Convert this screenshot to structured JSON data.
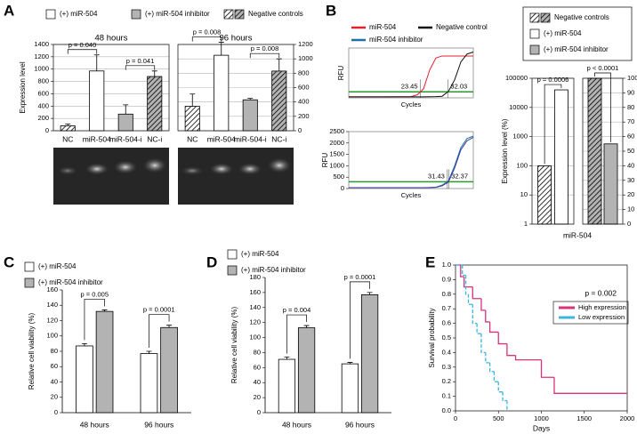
{
  "chart_data": [
    {
      "panel": "A",
      "type": "bar",
      "title": "48 hours",
      "ylabel": "Expression level",
      "legend": [
        {
          "name": "(+) miR-504",
          "fill": "white"
        },
        {
          "name": "(+) miR-504 inhibitor",
          "fill": "gray"
        },
        {
          "name": "Negative controls",
          "fill": [
            "hatch",
            "hatch-gray"
          ]
        }
      ],
      "categories": [
        "NC",
        "miR-504",
        "miR-504-i",
        "NC-i"
      ],
      "values": [
        80,
        970,
        270,
        880
      ],
      "errors": [
        30,
        260,
        150,
        90
      ],
      "fills": [
        "hatch",
        "white",
        "gray",
        "hatch-gray"
      ],
      "ylim": [
        0,
        1400
      ],
      "yticks": [
        0,
        200,
        400,
        600,
        800,
        1000,
        1200,
        1400
      ],
      "y_axis_side": "left",
      "grid": true,
      "annotations": [
        "p = 0.040",
        "p = 0.041"
      ]
    },
    {
      "type": "bar",
      "title": "96 hours",
      "categories": [
        "NC",
        "miR-504",
        "miR-504-i",
        "NC-i"
      ],
      "values": [
        340,
        1050,
        430,
        830
      ],
      "errors": [
        170,
        180,
        20,
        170
      ],
      "fills": [
        "hatch",
        "white",
        "gray",
        "hatch-gray"
      ],
      "ylim": [
        0,
        1200
      ],
      "yticks": [
        0,
        200,
        400,
        600,
        800,
        1000,
        1200
      ],
      "y_axis_side": "right",
      "grid": true,
      "annotations": [
        "p = 0.008",
        "p = 0.008"
      ]
    },
    {
      "panel": "B",
      "type": "line",
      "ylabel": "RFU",
      "xlabel": "Cycles",
      "x": [
        0,
        10,
        20,
        22,
        24,
        26,
        28,
        30,
        32,
        34,
        36,
        38,
        40
      ],
      "xlim": [
        0,
        40
      ],
      "ylim": [
        0,
        2500
      ],
      "threshold": 300,
      "threshold_color": "#2a9a2a",
      "series": [
        {
          "name": "miR-504",
          "color": "#e0202a",
          "values": [
            50,
            50,
            60,
            150,
            450,
            1400,
            2000,
            2100,
            2100,
            2100,
            2100,
            2100,
            2100
          ]
        },
        {
          "name": "Negative control",
          "color": "#111111",
          "values": [
            50,
            50,
            50,
            50,
            50,
            55,
            60,
            80,
            320,
            900,
            1800,
            2200,
            2300
          ]
        }
      ],
      "annotations": [
        "23.45",
        "32.03"
      ]
    },
    {
      "type": "line",
      "ylabel": "RFU",
      "xlabel": "Cycles",
      "x": [
        0,
        10,
        20,
        22,
        24,
        26,
        28,
        30,
        32,
        34,
        36,
        38,
        40
      ],
      "xlim": [
        0,
        40
      ],
      "ylim": [
        0,
        2500
      ],
      "yticks": [
        0,
        500,
        1000,
        1500,
        2000,
        2500
      ],
      "threshold": 300,
      "threshold_color": "#2a9a2a",
      "series": [
        {
          "name": "miR-504 inhibitor",
          "color": "#1f6fa8",
          "values": [
            40,
            40,
            40,
            40,
            40,
            45,
            60,
            150,
            330,
            1000,
            1800,
            2200,
            2300
          ]
        },
        {
          "color": "#3a3aa0",
          "values": [
            40,
            40,
            40,
            40,
            40,
            45,
            55,
            120,
            280,
            900,
            1700,
            2100,
            2250
          ]
        }
      ],
      "annotations": [
        "31.43",
        "32.37"
      ]
    },
    {
      "type": "bar",
      "ylabel": "Expression level (%)",
      "xlabel": "miR-504",
      "legend": [
        {
          "name": "Negative controls",
          "fill": [
            "hatch",
            "hatch-gray"
          ]
        },
        {
          "name": "(+) miR-504",
          "fill": "white"
        },
        {
          "name": "(+) miR-504 inhibitor",
          "fill": "gray"
        }
      ],
      "ylog": true,
      "ylim": [
        1,
        100000
      ],
      "yticks": [
        1,
        10,
        100,
        1000,
        10000,
        100000
      ],
      "y2lim": [
        0,
        100
      ],
      "y2ticks": [
        0,
        10,
        20,
        30,
        40,
        50,
        60,
        70,
        80,
        90,
        100
      ],
      "grid": true,
      "series": [
        {
          "values": [
            100,
            40000
          ],
          "fills": [
            "hatch",
            "white"
          ]
        },
        {
          "values": [
            100,
            55
          ],
          "fills": [
            "hatch-gray",
            "gray"
          ],
          "axis": "y2"
        }
      ],
      "annotations": [
        "p = 0.0006",
        "p < 0.0001"
      ]
    },
    {
      "panel": "C",
      "type": "bar",
      "ylabel": "Relative cell viability (%)",
      "categories": [
        "48 hours",
        "96 hours"
      ],
      "series": [
        {
          "name": "(+) miR-504",
          "color": "#ffffff",
          "values": [
            87,
            77
          ],
          "errors": [
            3,
            3
          ]
        },
        {
          "name": "(+) miR-504 inhibitor",
          "color": "#b3b3b3",
          "values": [
            132,
            111
          ],
          "errors": [
            2,
            3
          ]
        }
      ],
      "ylim": [
        0,
        160
      ],
      "yticks": [
        0,
        20,
        40,
        60,
        80,
        100,
        120,
        140,
        160
      ],
      "annotations": [
        "p = 0.005",
        "p = 0.0001"
      ]
    },
    {
      "panel": "D",
      "type": "bar",
      "ylabel": "Relative cell viability (%)",
      "categories": [
        "48 hours",
        "96 hours"
      ],
      "series": [
        {
          "name": "(+) miR-504",
          "color": "#ffffff",
          "values": [
            71,
            65
          ],
          "errors": [
            3,
            2
          ]
        },
        {
          "name": "(+) miR-504 inhibitor",
          "color": "#b3b3b3",
          "values": [
            113,
            157
          ],
          "errors": [
            3,
            3
          ]
        }
      ],
      "ylim": [
        0,
        180
      ],
      "yticks": [
        0,
        20,
        40,
        60,
        80,
        100,
        120,
        140,
        160,
        180
      ],
      "annotations": [
        "p = 0.004",
        "p = 0.0001"
      ]
    },
    {
      "panel": "E",
      "type": "line",
      "step": true,
      "xlabel": "Days",
      "ylabel": "Survival probability",
      "xlim": [
        0,
        2000
      ],
      "xticks": [
        0,
        500,
        1000,
        1500,
        2000
      ],
      "ylim": [
        0,
        1
      ],
      "yticks": [
        {
          "value": 0,
          "label": "0.0"
        },
        0.1,
        0.2,
        0.3,
        0.4,
        0.5,
        0.6,
        0.7,
        0.8,
        0.9,
        {
          "value": 1,
          "label": "1.0"
        }
      ],
      "series": [
        {
          "name": "High expression",
          "color": "#d6337a",
          "line_style": "solid",
          "x": [
            0,
            60,
            100,
            150,
            200,
            300,
            350,
            400,
            500,
            600,
            700,
            1000,
            1150,
            2000
          ],
          "values": [
            1,
            0.92,
            0.85,
            0.85,
            0.77,
            0.69,
            0.61,
            0.54,
            0.46,
            0.38,
            0.35,
            0.23,
            0.12,
            0.12
          ]
        },
        {
          "name": "Low expression",
          "color": "#3eb4e0",
          "line_style": "dashed",
          "x": [
            0,
            80,
            120,
            150,
            200,
            250,
            300,
            350,
            400,
            450,
            500,
            550,
            600
          ],
          "values": [
            1,
            0.93,
            0.8,
            0.73,
            0.6,
            0.53,
            0.4,
            0.33,
            0.27,
            0.2,
            0.13,
            0.07,
            0
          ]
        }
      ],
      "annotations": [
        "p = 0.002"
      ]
    }
  ]
}
